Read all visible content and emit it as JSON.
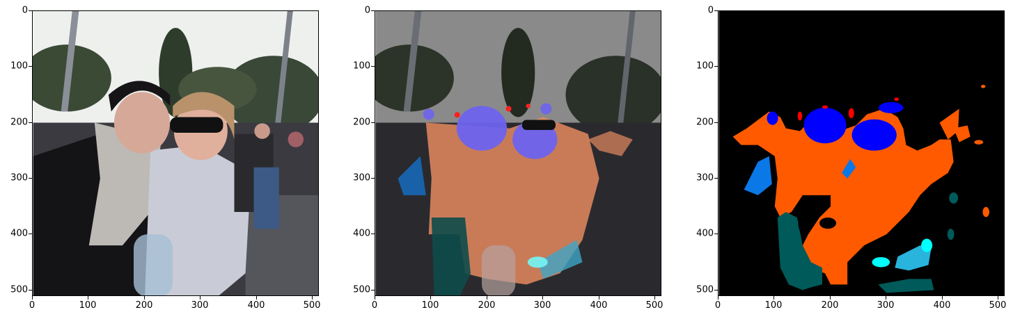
{
  "figure": {
    "panels": [
      {
        "id": "original-photo",
        "kind": "photo"
      },
      {
        "id": "overlay",
        "kind": "photo-with-mask-overlay"
      },
      {
        "id": "segmentation-mask",
        "kind": "mask"
      }
    ],
    "x_ticks": [
      "0",
      "100",
      "200",
      "300",
      "400",
      "500"
    ],
    "y_ticks": [
      "0",
      "100",
      "200",
      "300",
      "400",
      "500"
    ],
    "x_range": [
      0,
      512
    ],
    "y_range": [
      0,
      512
    ],
    "mask_colors": {
      "skin": "#ff5a00",
      "face": "#0000ff",
      "background-person-left": "#0a78e6",
      "dark-teal": "#005a5a",
      "cyan": "#00ffff",
      "light-blue": "#28b4dc",
      "red": "#ff0000",
      "background": "#000000"
    }
  }
}
